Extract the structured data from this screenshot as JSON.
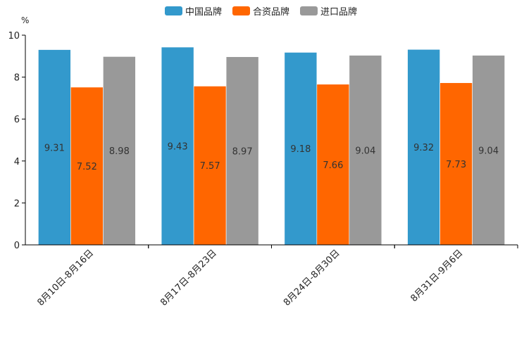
{
  "chart_data": {
    "type": "bar",
    "unit": "%",
    "categories": [
      "8月10日-8月16日",
      "8月17日-8月23日",
      "8月24日-8月30日",
      "8月31日-9月6日"
    ],
    "series": [
      {
        "name": "中国品牌",
        "color": "#3399cc",
        "values": [
          9.31,
          9.43,
          9.18,
          9.32
        ]
      },
      {
        "name": "合资品牌",
        "color": "#ff6600",
        "values": [
          7.52,
          7.57,
          7.66,
          7.73
        ]
      },
      {
        "name": "进口品牌",
        "color": "#999999",
        "values": [
          8.98,
          8.97,
          9.04,
          9.04
        ]
      }
    ],
    "ylim": [
      0,
      10
    ],
    "yticks": [
      0,
      2,
      4,
      6,
      8,
      10
    ],
    "legend_position": "top-center",
    "grid": false
  }
}
